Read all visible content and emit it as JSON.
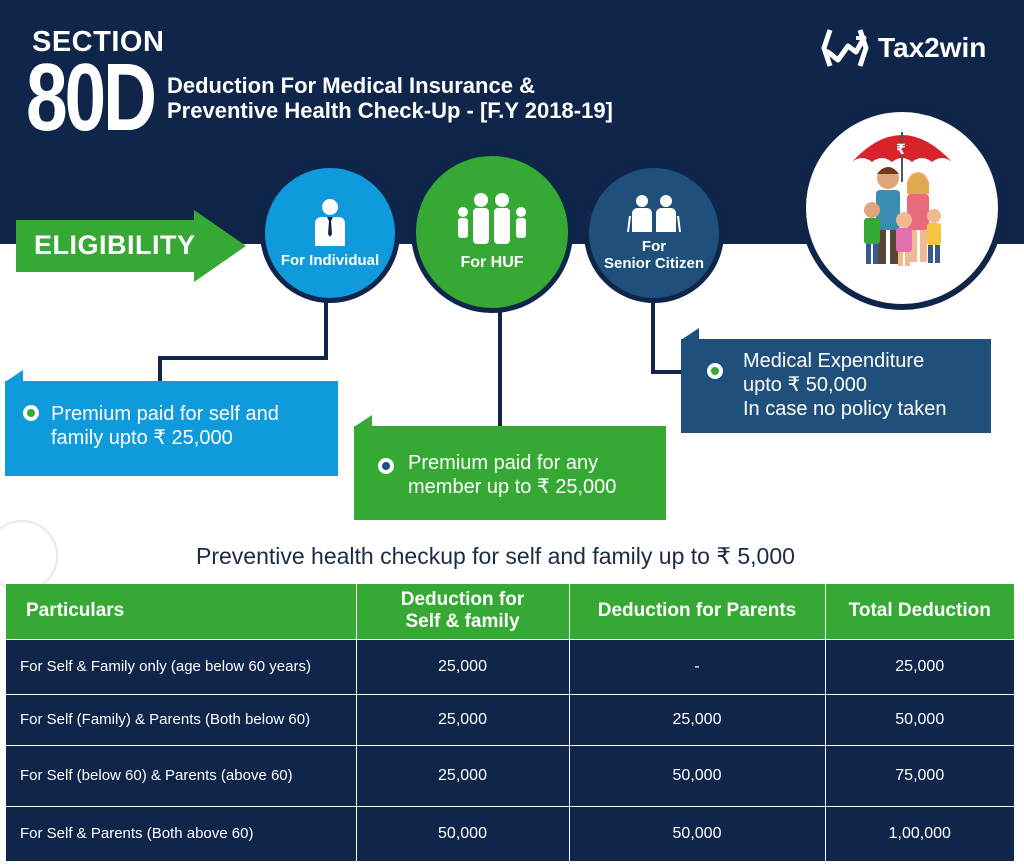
{
  "header": {
    "section_word": "SECTION",
    "section_number": "80D",
    "title_line1": "Deduction For Medical Insurance &",
    "title_line2": "Preventive Health Check-Up - [F.Y 2018-19]",
    "logo_text": "Tax2win"
  },
  "eligibility": {
    "label": "ELIGIBILITY",
    "categories": [
      {
        "label": "For Individual",
        "icon": "businessman-icon"
      },
      {
        "label": "For HUF",
        "icon": "family-group-icon"
      },
      {
        "label": "For\nSenior Citizen",
        "icon": "elderly-couple-icon"
      }
    ],
    "details": {
      "individual": "Premium paid for self and\nfamily upto ₹ 25,000",
      "huf": "Premium paid for any\nmember up to ₹ 25,000",
      "senior": "Medical Expenditure\nupto ₹ 50,000\nIn case no policy taken"
    }
  },
  "preventive_note": "Preventive health checkup for self and family up to ₹ 5,000",
  "table": {
    "headers": [
      "Particulars",
      "Deduction for\nSelf & family",
      "Deduction for Parents",
      "Total Deduction"
    ],
    "rows": [
      [
        "For Self & Family only (age below 60 years)",
        "25,000",
        "-",
        "25,000"
      ],
      [
        "For Self (Family) & Parents (Both below 60)",
        "25,000",
        "25,000",
        "50,000"
      ],
      [
        "For Self (below 60) & Parents (above 60)",
        "25,000",
        "50,000",
        "75,000"
      ],
      [
        "For Self & Parents (Both above 60)",
        "50,000",
        "50,000",
        "1,00,000"
      ]
    ]
  },
  "colors": {
    "navy": "#0f254a",
    "green": "#36a935",
    "blue": "#0e9adb",
    "steel": "#1f4f7b"
  }
}
